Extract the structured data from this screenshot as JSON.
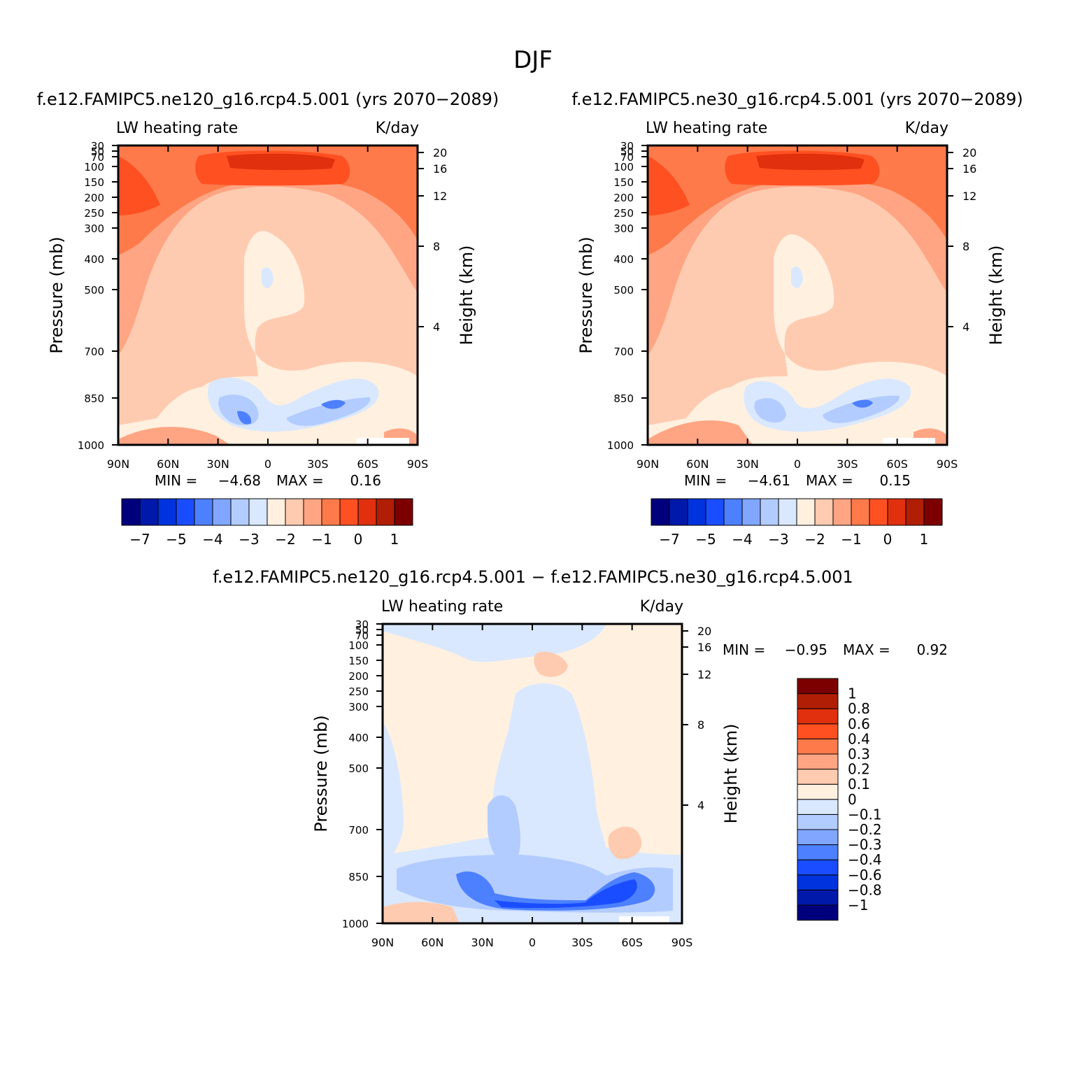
{
  "figure": {
    "title": "DJF",
    "difference_title": "f.e12.FAMIPC5.ne120_g16.rcp4.5.001 − f.e12.FAMIPC5.ne30_g16.rcp4.5.001"
  },
  "colorbar_main": {
    "colors": [
      "#00007d",
      "#0019aa",
      "#0033dd",
      "#1a4dff",
      "#4d80ff",
      "#80a6ff",
      "#b3ccff",
      "#d9e8ff",
      "#fff0e0",
      "#ffcbb0",
      "#ffa583",
      "#ff7a4a",
      "#ff5021",
      "#e0300d",
      "#b01e05",
      "#7d0000"
    ],
    "labels": [
      "−7",
      "−5",
      "−4",
      "−3",
      "−2",
      "−1",
      "0",
      "1"
    ]
  },
  "colorbar_diff": {
    "colors": [
      "#00007d",
      "#0019aa",
      "#0033dd",
      "#1a4dff",
      "#4d80ff",
      "#80a6ff",
      "#b3ccff",
      "#d9e8ff",
      "#fff0e0",
      "#ffcbb0",
      "#ffa583",
      "#ff7a4a",
      "#ff5021",
      "#e0300d",
      "#b01e05",
      "#7d0000"
    ],
    "labels": [
      "−1",
      "−0.8",
      "−0.6",
      "−0.4",
      "−0.3",
      "−0.2",
      "−0.1",
      "0",
      "0.1",
      "0.2",
      "0.3",
      "0.4",
      "0.6",
      "0.8",
      "1"
    ]
  },
  "chart_data": [
    {
      "type": "heatmap",
      "title": "f.e12.FAMIPC5.ne120_g16.rcp4.5.001 (yrs 2070−2089)",
      "left_label": "LW heating rate",
      "right_label": "K/day",
      "xlabel": "",
      "ylabel": "Pressure (mb)",
      "y2label": "Height (km)",
      "x_ticks": [
        "90N",
        "60N",
        "30N",
        "0",
        "30S",
        "60S",
        "90S"
      ],
      "y_ticks": [
        "30",
        "50",
        "70",
        "100",
        "150",
        "200",
        "250",
        "300",
        "400",
        "500",
        "700",
        "850",
        "1000"
      ],
      "y2_ticks": [
        "20",
        "16",
        "12",
        "8",
        "4"
      ],
      "min_label": "MIN =",
      "min_value": "−4.68",
      "max_label": "MAX =",
      "max_value": "0.16"
    },
    {
      "type": "heatmap",
      "title": "f.e12.FAMIPC5.ne30_g16.rcp4.5.001 (yrs 2070−2089)",
      "left_label": "LW heating rate",
      "right_label": "K/day",
      "xlabel": "",
      "ylabel": "Pressure (mb)",
      "y2label": "Height (km)",
      "x_ticks": [
        "90N",
        "60N",
        "30N",
        "0",
        "30S",
        "60S",
        "90S"
      ],
      "y_ticks": [
        "30",
        "50",
        "70",
        "100",
        "150",
        "200",
        "250",
        "300",
        "400",
        "500",
        "700",
        "850",
        "1000"
      ],
      "y2_ticks": [
        "20",
        "16",
        "12",
        "8",
        "4"
      ],
      "min_label": "MIN =",
      "min_value": "−4.61",
      "max_label": "MAX =",
      "max_value": "0.15"
    },
    {
      "type": "heatmap",
      "title": "",
      "left_label": "LW heating rate",
      "right_label": "K/day",
      "xlabel": "",
      "ylabel": "Pressure (mb)",
      "y2label": "Height (km)",
      "x_ticks": [
        "90N",
        "60N",
        "30N",
        "0",
        "30S",
        "60S",
        "90S"
      ],
      "y_ticks": [
        "30",
        "50",
        "70",
        "100",
        "150",
        "200",
        "250",
        "300",
        "400",
        "500",
        "700",
        "850",
        "1000"
      ],
      "y2_ticks": [
        "20",
        "16",
        "12",
        "8",
        "4"
      ],
      "min_label": "MIN =",
      "min_value": "−0.95",
      "max_label": "MAX =",
      "max_value": "0.92"
    }
  ]
}
